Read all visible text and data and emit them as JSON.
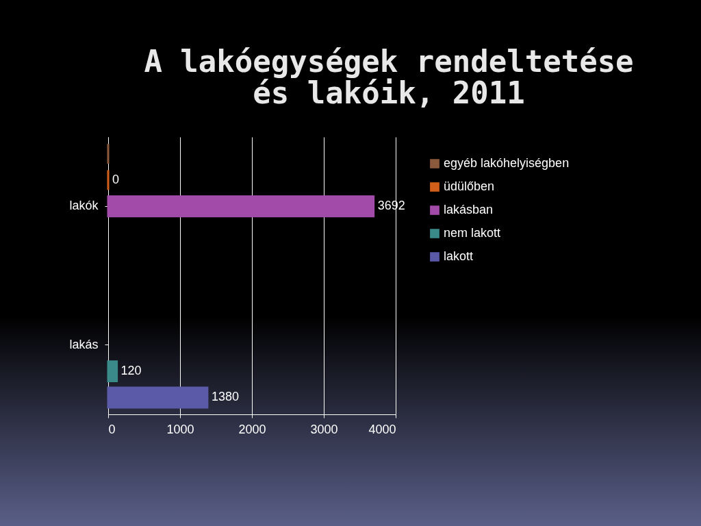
{
  "chart_data": {
    "type": "bar",
    "orientation": "horizontal",
    "title": "A lakóegységek rendeltetése\nés lakóik, 2011",
    "categories": [
      "lakók",
      "lakás"
    ],
    "series": [
      {
        "name": "egyéb lakóhelyiségben",
        "color": "#8b5a3c",
        "values": [
          0,
          null
        ],
        "value_labels": [
          null,
          null
        ]
      },
      {
        "name": "üdülőben",
        "color": "#d2601a",
        "values": [
          0,
          null
        ],
        "value_labels": [
          "0",
          null
        ]
      },
      {
        "name": "lakásban",
        "color": "#a24ba8",
        "values": [
          3692,
          null
        ],
        "value_labels": [
          "3692",
          null
        ]
      },
      {
        "name": "nem lakott",
        "color": "#3b8a8a",
        "values": [
          null,
          120
        ],
        "value_labels": [
          null,
          "120"
        ]
      },
      {
        "name": "lakott",
        "color": "#5a5aa8",
        "values": [
          null,
          1380
        ],
        "value_labels": [
          null,
          "1380"
        ]
      }
    ],
    "xlim": [
      0,
      4000
    ],
    "xticks": [
      0,
      1000,
      2000,
      3000,
      4000
    ],
    "grid": "x",
    "legend": "right"
  }
}
